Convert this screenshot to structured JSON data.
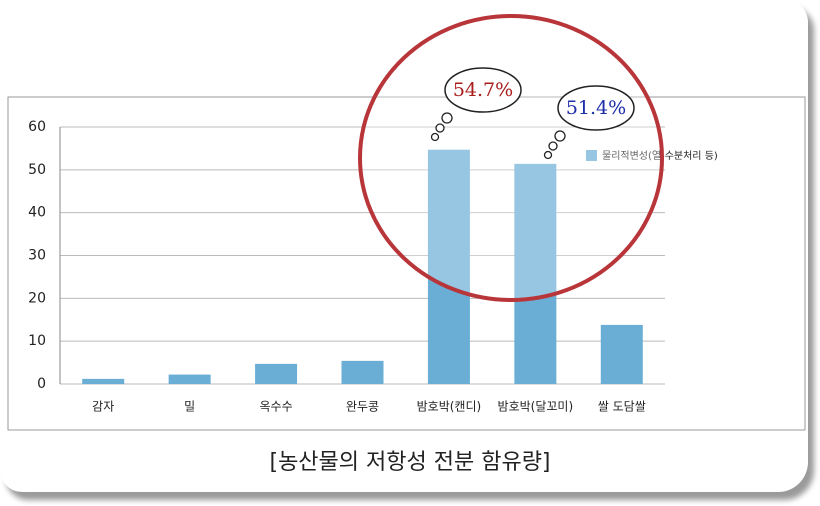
{
  "chart_data": {
    "type": "bar",
    "caption": "[농산물의 저항성 전분 함유량]",
    "categories": [
      "감자",
      "밀",
      "옥수수",
      "완두콩",
      "밤호박(캔디)",
      "밤호박(달꼬미)",
      "쌀 도담쌀"
    ],
    "series": [
      {
        "name": "물리적변성(열-수분처리 등)",
        "color": "#6aaed6",
        "values": [
          1.2,
          2.2,
          4.7,
          5.4,
          54.7,
          51.4,
          13.8
        ],
        "value_labels": [
          null,
          null,
          null,
          null,
          "54.7%",
          "51.4%",
          null
        ]
      }
    ],
    "ylim": [
      0,
      60
    ],
    "yticks": [
      0,
      10,
      20,
      30,
      40,
      50,
      60
    ],
    "grid": true,
    "legend": "top-right"
  }
}
